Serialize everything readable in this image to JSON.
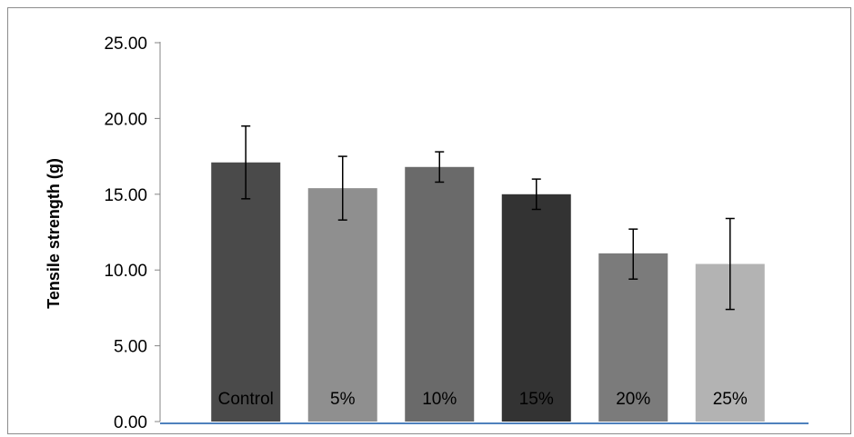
{
  "chart_data": {
    "type": "bar",
    "title": "",
    "xlabel": "",
    "ylabel": "Tensile strength (g)",
    "ylim": [
      0,
      25
    ],
    "yticks": [
      "0.00",
      "5.00",
      "10.00",
      "15.00",
      "20.00",
      "25.00"
    ],
    "categories": [
      "Control",
      "5%",
      "10%",
      "15%",
      "20%",
      "25%"
    ],
    "values": [
      17.1,
      15.4,
      16.8,
      15.0,
      11.1,
      10.4
    ],
    "error_low": [
      14.7,
      13.3,
      15.8,
      14.0,
      9.4,
      7.4
    ],
    "error_high": [
      19.5,
      17.5,
      17.8,
      16.0,
      12.7,
      13.4
    ],
    "bar_colors": [
      "#4a4a4a",
      "#8f8f8f",
      "#6a6a6a",
      "#333333",
      "#7b7b7b",
      "#b3b3b3"
    ],
    "axis_color": "#4f81bd",
    "grid": false,
    "legend": "none"
  }
}
